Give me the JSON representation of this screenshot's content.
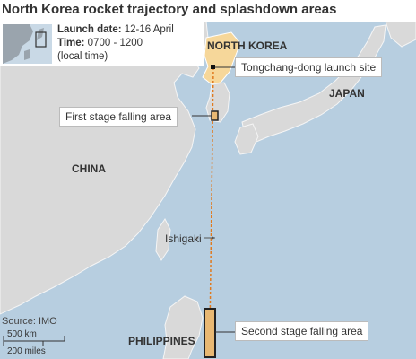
{
  "title": "North Korea rocket trajectory and splashdown areas",
  "info": {
    "launch_label": "Launch date:",
    "launch_value": "12-16 April",
    "time_label": "Time:",
    "time_value": "0700 - 1200",
    "time_note": "(local time)"
  },
  "countries": {
    "north_korea": "NORTH KOREA",
    "japan": "JAPAN",
    "china": "CHINA",
    "philippines": "PHILIPPINES"
  },
  "places": {
    "ishigaki": "Ishigaki"
  },
  "callouts": {
    "launch_site": "Tongchang-dong launch site",
    "first_stage": "First stage falling area",
    "second_stage": "Second stage falling area"
  },
  "source": "Source: IMO",
  "scale": {
    "km": "500 km",
    "miles": "200 miles"
  },
  "colors": {
    "sea": "#b7cee0",
    "land": "#d9d9d9",
    "north_korea": "#f6d79a",
    "trajectory": "#e07a1f",
    "zone_fill": "#e8b873"
  }
}
